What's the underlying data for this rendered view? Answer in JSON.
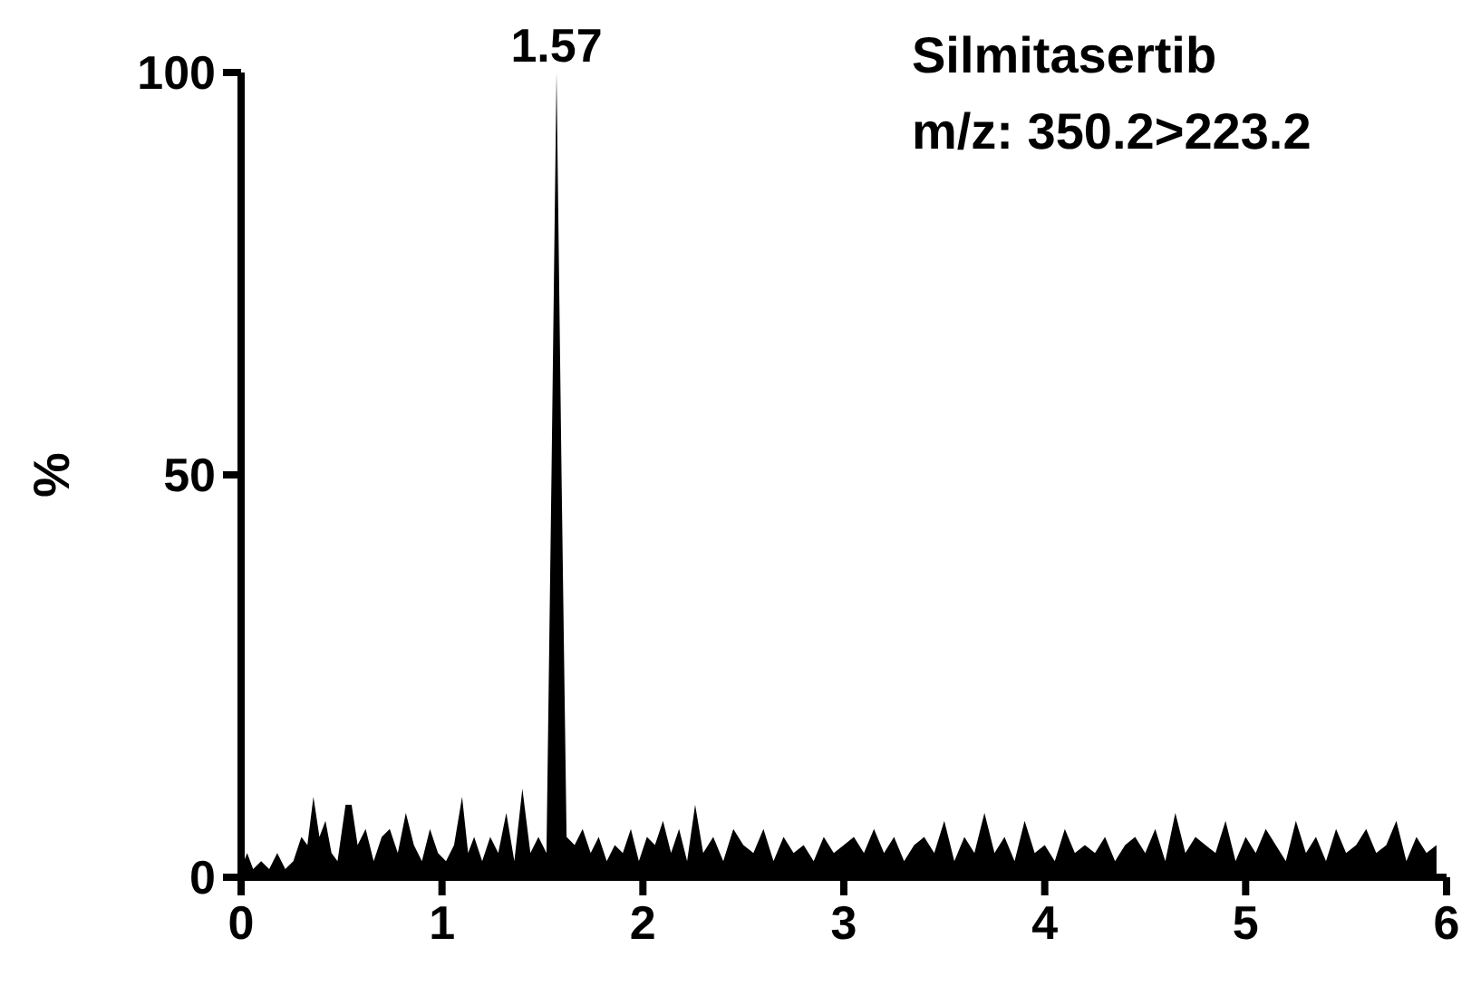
{
  "chart_data": {
    "type": "area",
    "title": "Silmitasertib",
    "subtitle": "m/z: 350.2>223.2",
    "ylabel": "%",
    "x": [
      0,
      0.03,
      0.06,
      0.1,
      0.14,
      0.18,
      0.22,
      0.26,
      0.3,
      0.33,
      0.36,
      0.39,
      0.42,
      0.45,
      0.48,
      0.52,
      0.55,
      0.58,
      0.62,
      0.66,
      0.7,
      0.74,
      0.78,
      0.82,
      0.86,
      0.9,
      0.94,
      0.98,
      1.02,
      1.06,
      1.1,
      1.13,
      1.16,
      1.2,
      1.24,
      1.28,
      1.32,
      1.36,
      1.4,
      1.44,
      1.48,
      1.52,
      1.545,
      1.57,
      1.595,
      1.62,
      1.66,
      1.7,
      1.74,
      1.78,
      1.82,
      1.86,
      1.9,
      1.94,
      1.98,
      2.02,
      2.06,
      2.1,
      2.14,
      2.18,
      2.22,
      2.26,
      2.3,
      2.35,
      2.4,
      2.45,
      2.5,
      2.55,
      2.6,
      2.65,
      2.7,
      2.75,
      2.8,
      2.85,
      2.9,
      2.95,
      3,
      3.05,
      3.1,
      3.15,
      3.2,
      3.25,
      3.3,
      3.35,
      3.4,
      3.45,
      3.5,
      3.55,
      3.6,
      3.65,
      3.7,
      3.75,
      3.8,
      3.85,
      3.9,
      3.95,
      4,
      4.05,
      4.1,
      4.15,
      4.2,
      4.25,
      4.3,
      4.35,
      4.4,
      4.45,
      4.5,
      4.55,
      4.6,
      4.65,
      4.7,
      4.75,
      4.8,
      4.85,
      4.9,
      4.95,
      5,
      5.05,
      5.1,
      5.15,
      5.2,
      5.25,
      5.3,
      5.35,
      5.4,
      5.45,
      5.5,
      5.55,
      5.6,
      5.65,
      5.7,
      5.75,
      5.8,
      5.85,
      5.9,
      5.95
    ],
    "series": [
      {
        "color": "#000000",
        "values": [
          1,
          3,
          1,
          2,
          1,
          3,
          1,
          2,
          5,
          4,
          10,
          5,
          7,
          3,
          2,
          9,
          9,
          4,
          6,
          2,
          5,
          6,
          3,
          8,
          4,
          2,
          6,
          3,
          2,
          4,
          10,
          3,
          5,
          2,
          5,
          3,
          8,
          2,
          11,
          3,
          5,
          3,
          50,
          100,
          50,
          5,
          4,
          6,
          3,
          5,
          2,
          4,
          3,
          6,
          2,
          5,
          4,
          7,
          3,
          6,
          2,
          9,
          3,
          5,
          2,
          6,
          4,
          3,
          6,
          2,
          5,
          3,
          4,
          2,
          5,
          3,
          4,
          5,
          3,
          6,
          3,
          5,
          2,
          4,
          5,
          3,
          7,
          2,
          5,
          3,
          8,
          3,
          5,
          2,
          7,
          3,
          4,
          2,
          6,
          3,
          4,
          3,
          5,
          2,
          4,
          5,
          3,
          6,
          2,
          8,
          3,
          5,
          4,
          3,
          7,
          2,
          5,
          3,
          6,
          4,
          2,
          7,
          3,
          5,
          2,
          6,
          3,
          4,
          6,
          3,
          4,
          7,
          2,
          5,
          3,
          4
        ]
      }
    ],
    "xlim": [
      0,
      6
    ],
    "xticks": [
      0,
      1,
      2,
      3,
      4,
      5,
      6
    ],
    "ylim": [
      0,
      100
    ],
    "yticks": [
      0,
      50,
      100
    ],
    "grid": false,
    "annotations": [
      {
        "text": "1.57",
        "x": 1.57,
        "y": 100
      }
    ]
  }
}
